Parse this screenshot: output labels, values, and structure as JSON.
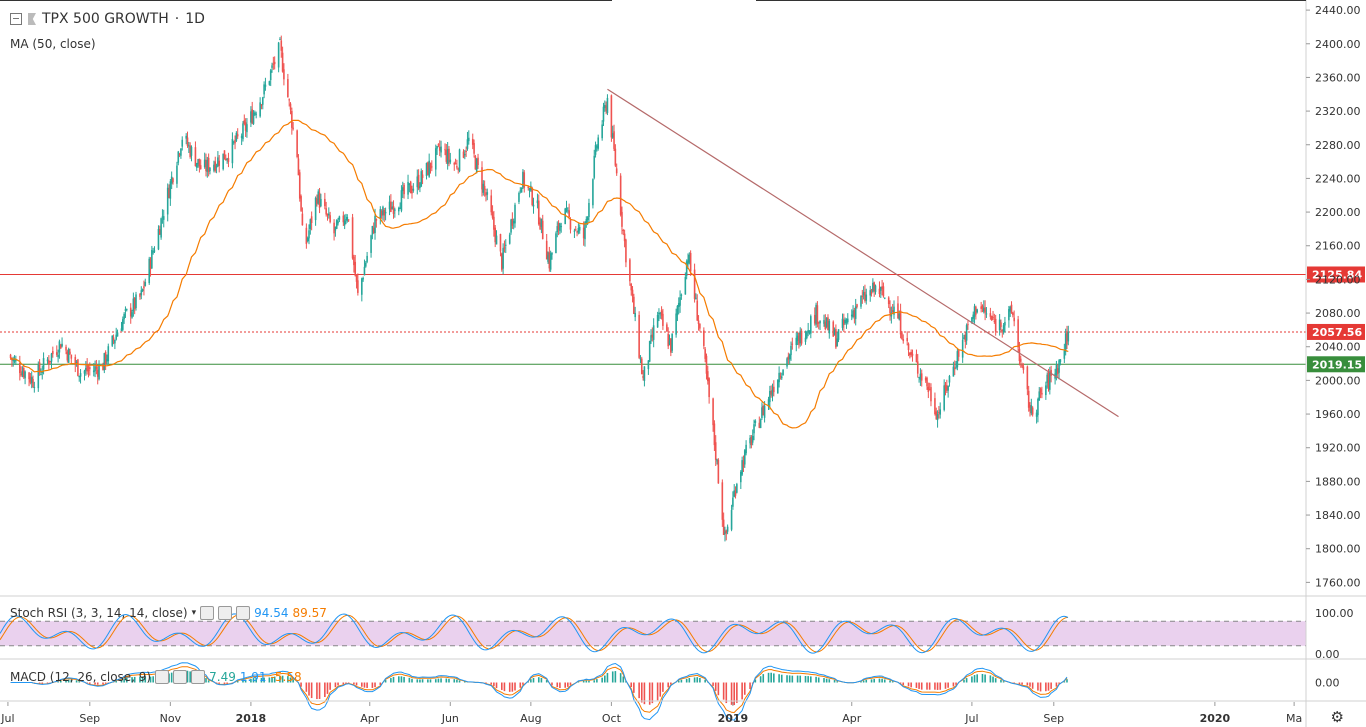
{
  "symbol": "TPX 500 GROWTH",
  "interval": "1D",
  "title_sep": " · ",
  "ma_label": "MA (50, close)",
  "stoch_label": "Stoch RSI (3, 3, 14, 14, close)",
  "stoch_k": "94.54",
  "stoch_d": "89.57",
  "macd_label": "MACD (12, 26, close, 9)",
  "macd_hist": "7.49",
  "macd_line": "1.91",
  "macd_signal": "-5.58",
  "colors": {
    "up": "#26a69a",
    "down": "#ef5350",
    "ma": "#f57c00",
    "red_line": "#e53935",
    "green_line": "#388e3c",
    "trend": "#b56a6a",
    "stoch_k": "#2196f3",
    "stoch_d": "#f57c00",
    "stoch_band": "#e1bee7"
  },
  "chart_data": {
    "type": "candlestick",
    "y_axis_ticks": [
      2440,
      2400,
      2360,
      2320,
      2280,
      2240,
      2200,
      2160,
      2120,
      2080,
      2040,
      2000,
      1960,
      1920,
      1880,
      1840,
      1800,
      1760
    ],
    "y_range": [
      1745,
      2452
    ],
    "x_axis_ticks": [
      "Jul",
      "Sep",
      "Nov",
      "2018",
      "Apr",
      "Jun",
      "Aug",
      "Oct",
      "2019",
      "Apr",
      "Jul",
      "Sep",
      "2020",
      "Ma"
    ],
    "levels": [
      {
        "value": 2125.84,
        "label": "2125.84",
        "style": "solid",
        "color": "#e53935"
      },
      {
        "value": 2057.56,
        "label": "2057.56",
        "style": "dotted",
        "color": "#e53935"
      },
      {
        "value": 2019.15,
        "label": "2019.15",
        "style": "solid",
        "color": "#388e3c"
      }
    ],
    "trendline": {
      "from": {
        "date": "2018-09-28",
        "value": 2346
      },
      "to": {
        "date": "2019-10-20",
        "value": 1957
      }
    },
    "price_waypoints": [
      {
        "date": "2017-07-01",
        "close": 2030
      },
      {
        "date": "2017-07-20",
        "close": 2000
      },
      {
        "date": "2017-08-10",
        "close": 2045
      },
      {
        "date": "2017-08-25",
        "close": 2010
      },
      {
        "date": "2017-09-10",
        "close": 2015
      },
      {
        "date": "2017-09-25",
        "close": 2070
      },
      {
        "date": "2017-10-10",
        "close": 2100
      },
      {
        "date": "2017-10-25",
        "close": 2190
      },
      {
        "date": "2017-11-10",
        "close": 2290
      },
      {
        "date": "2017-11-25",
        "close": 2250
      },
      {
        "date": "2017-12-15",
        "close": 2270
      },
      {
        "date": "2017-12-28",
        "close": 2300
      },
      {
        "date": "2018-01-10",
        "close": 2340
      },
      {
        "date": "2018-01-23",
        "close": 2395
      },
      {
        "date": "2018-02-05",
        "close": 2270
      },
      {
        "date": "2018-02-10",
        "close": 2150
      },
      {
        "date": "2018-02-20",
        "close": 2220
      },
      {
        "date": "2018-03-05",
        "close": 2175
      },
      {
        "date": "2018-03-15",
        "close": 2200
      },
      {
        "date": "2018-03-23",
        "close": 2100
      },
      {
        "date": "2018-04-05",
        "close": 2190
      },
      {
        "date": "2018-04-20",
        "close": 2210
      },
      {
        "date": "2018-05-10",
        "close": 2240
      },
      {
        "date": "2018-05-25",
        "close": 2275
      },
      {
        "date": "2018-06-05",
        "close": 2255
      },
      {
        "date": "2018-06-15",
        "close": 2285
      },
      {
        "date": "2018-06-28",
        "close": 2220
      },
      {
        "date": "2018-07-10",
        "close": 2140
      },
      {
        "date": "2018-07-25",
        "close": 2240
      },
      {
        "date": "2018-08-05",
        "close": 2210
      },
      {
        "date": "2018-08-15",
        "close": 2140
      },
      {
        "date": "2018-08-25",
        "close": 2200
      },
      {
        "date": "2018-09-10",
        "close": 2170
      },
      {
        "date": "2018-09-20",
        "close": 2280
      },
      {
        "date": "2018-09-28",
        "close": 2335
      },
      {
        "date": "2018-10-05",
        "close": 2245
      },
      {
        "date": "2018-10-12",
        "close": 2150
      },
      {
        "date": "2018-10-25",
        "close": 2000
      },
      {
        "date": "2018-11-05",
        "close": 2080
      },
      {
        "date": "2018-11-15",
        "close": 2040
      },
      {
        "date": "2018-11-28",
        "close": 2150
      },
      {
        "date": "2018-12-10",
        "close": 2030
      },
      {
        "date": "2018-12-20",
        "close": 1900
      },
      {
        "date": "2018-12-26",
        "close": 1810
      },
      {
        "date": "2019-01-05",
        "close": 1890
      },
      {
        "date": "2019-01-20",
        "close": 1950
      },
      {
        "date": "2019-02-05",
        "close": 2010
      },
      {
        "date": "2019-02-20",
        "close": 2050
      },
      {
        "date": "2019-03-05",
        "close": 2080
      },
      {
        "date": "2019-03-20",
        "close": 2050
      },
      {
        "date": "2019-04-05",
        "close": 2090
      },
      {
        "date": "2019-04-20",
        "close": 2110
      },
      {
        "date": "2019-05-05",
        "close": 2080
      },
      {
        "date": "2019-05-15",
        "close": 2030
      },
      {
        "date": "2019-05-28",
        "close": 1995
      },
      {
        "date": "2019-06-05",
        "close": 1960
      },
      {
        "date": "2019-06-20",
        "close": 2030
      },
      {
        "date": "2019-07-05",
        "close": 2090
      },
      {
        "date": "2019-07-20",
        "close": 2065
      },
      {
        "date": "2019-08-01",
        "close": 2080
      },
      {
        "date": "2019-08-08",
        "close": 2010
      },
      {
        "date": "2019-08-15",
        "close": 1960
      },
      {
        "date": "2019-08-28",
        "close": 2000
      },
      {
        "date": "2019-09-05",
        "close": 2020
      },
      {
        "date": "2019-09-12",
        "close": 2057.56
      }
    ],
    "stoch_rsi": {
      "upper": 80,
      "lower": 20,
      "ticks": [
        100.0,
        0.0
      ]
    },
    "macd": {
      "ticks": [
        0.0
      ]
    }
  }
}
